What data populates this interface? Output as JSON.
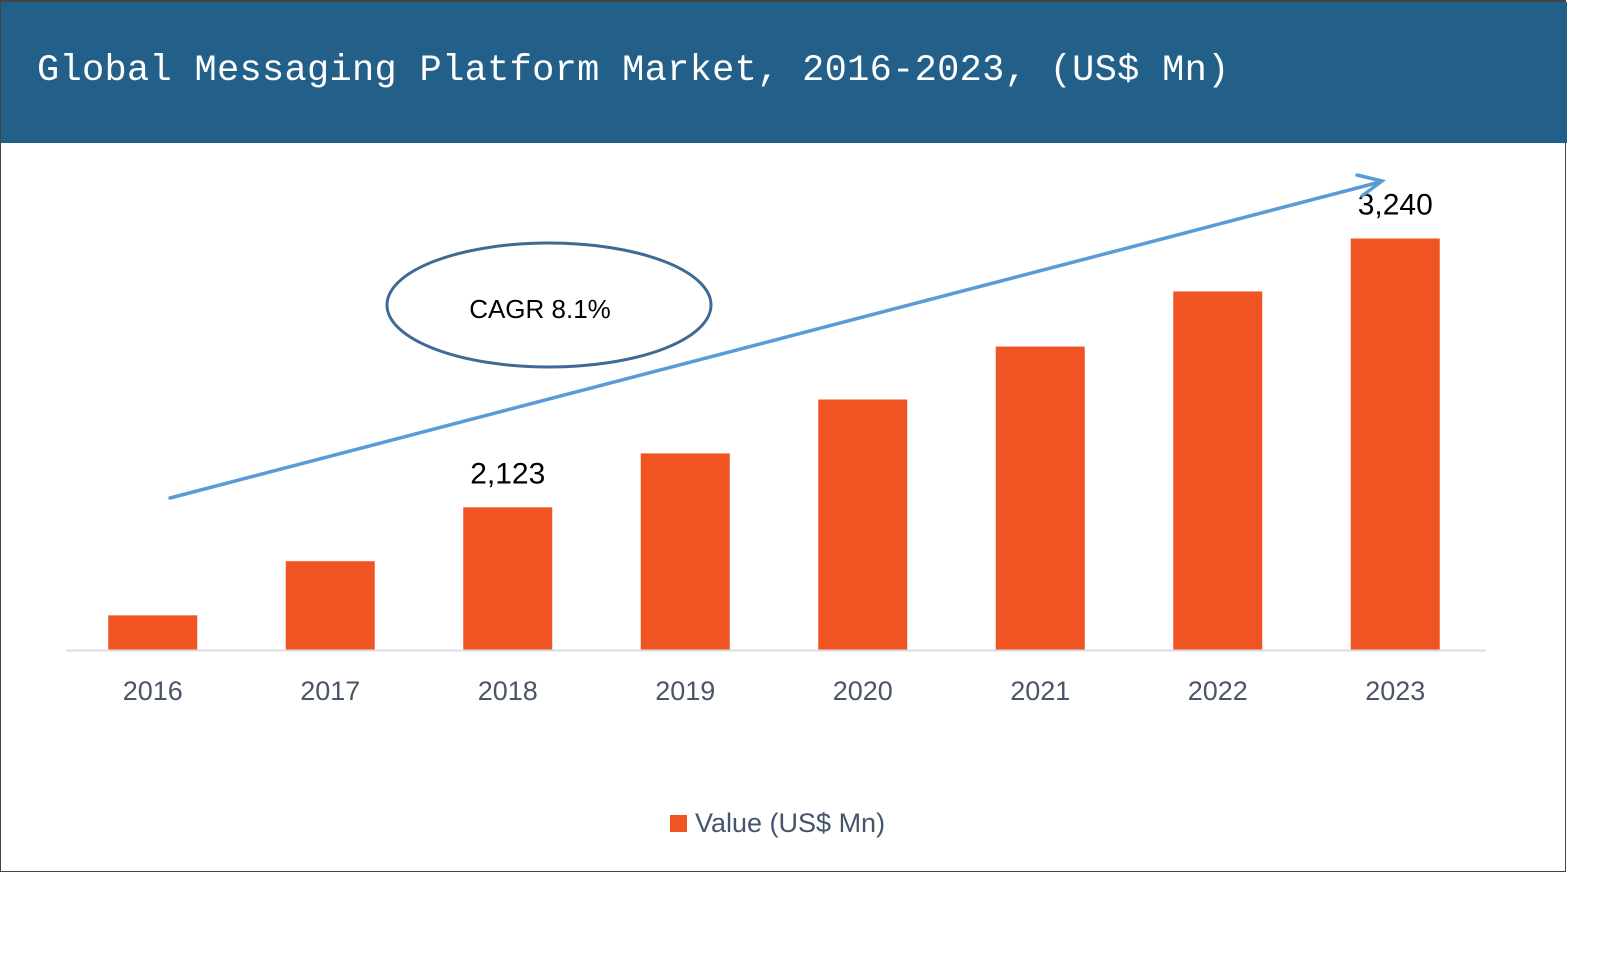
{
  "chart_data": {
    "type": "bar",
    "title": "Global Messaging Platform Market, 2016-2023, (US$ Mn)",
    "categories": [
      "2016",
      "2017",
      "2018",
      "2019",
      "2020",
      "2021",
      "2022",
      "2023"
    ],
    "series": [
      {
        "name": "Value (US$ Mn)",
        "values": [
          1674,
          1899,
          2123,
          2347,
          2571,
          2791,
          3020,
          3240
        ],
        "color": "#f05423"
      }
    ],
    "data_labels": [
      {
        "category": "2018",
        "text": "2,123"
      },
      {
        "category": "2023",
        "text": "3,240"
      }
    ],
    "annotation": {
      "text": "CAGR 8.1%",
      "shape": "ellipse",
      "arrow": "rising trend arrow",
      "arrow_color": "#5b9bd5",
      "ellipse_color": "#3f6a96"
    },
    "xlabel": "",
    "ylabel": "",
    "ylim": [
      1530,
      3400
    ],
    "y_axis_visible": false,
    "grid": false,
    "legend": {
      "placement": "bottom",
      "entries": [
        "Value (US$ Mn)"
      ]
    },
    "header_color": "#22608a"
  }
}
